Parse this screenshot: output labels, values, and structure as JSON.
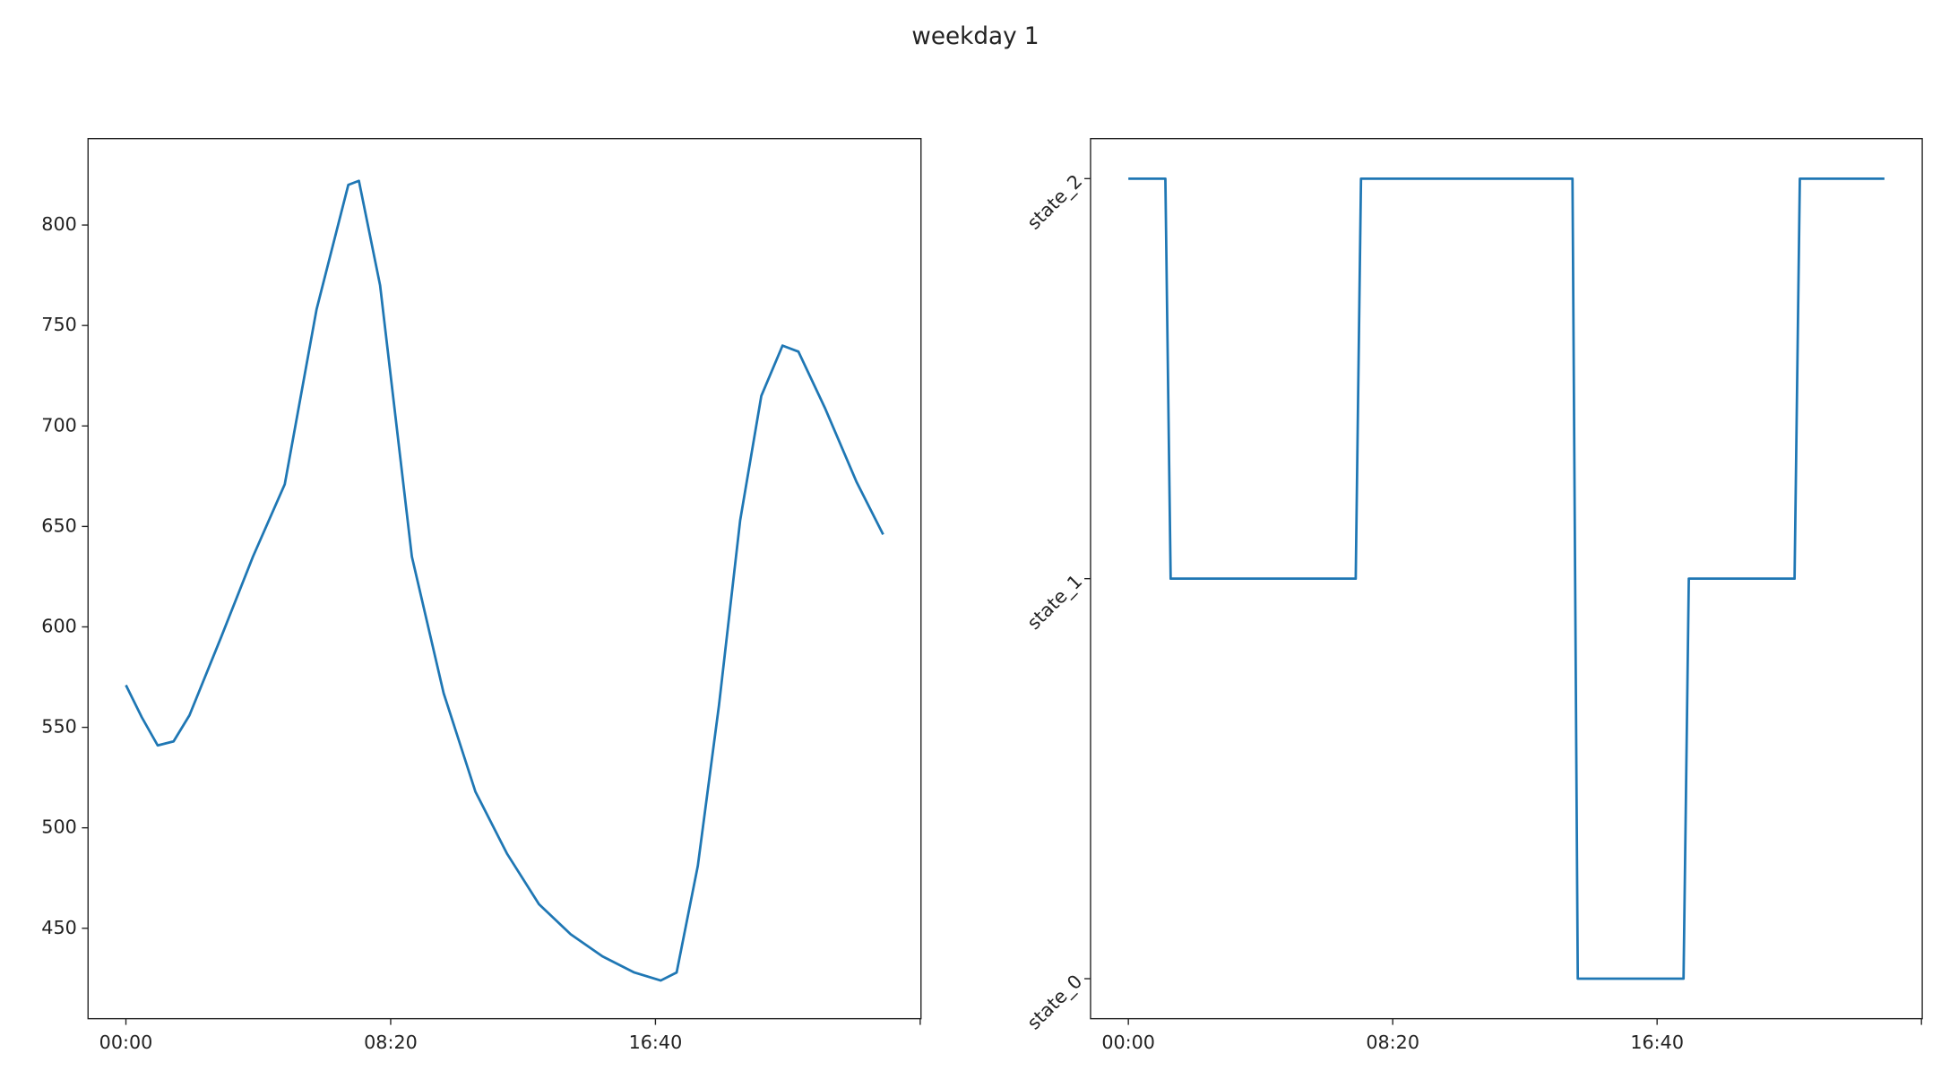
{
  "title": "weekday 1",
  "chart_data": [
    {
      "type": "line",
      "color": "#1f77b4",
      "x": [
        0,
        30,
        60,
        90,
        120,
        180,
        240,
        300,
        360,
        420,
        440,
        480,
        540,
        600,
        660,
        720,
        780,
        840,
        900,
        960,
        1010,
        1040,
        1080,
        1120,
        1160,
        1200,
        1240,
        1270,
        1320,
        1380,
        1430
      ],
      "values": [
        571,
        555,
        541,
        543,
        556,
        595,
        635,
        671,
        758,
        820,
        822,
        770,
        635,
        567,
        518,
        487,
        462,
        447,
        436,
        428,
        424,
        428,
        481,
        561,
        653,
        715,
        740,
        737,
        709,
        672,
        646
      ],
      "xlim": [
        -71.5,
        1501.5
      ],
      "xticks": [
        {
          "value": 0,
          "label": "00:00"
        },
        {
          "value": 500,
          "label": "08:20"
        },
        {
          "value": 1000,
          "label": "16:40"
        },
        {
          "value": 1500,
          "label": null
        }
      ],
      "ylim": [
        405,
        843
      ],
      "yticks": [
        450,
        500,
        550,
        600,
        650,
        700,
        750,
        800
      ]
    },
    {
      "type": "line",
      "color": "#1f77b4",
      "x": [
        0,
        70,
        80,
        430,
        440,
        840,
        850,
        1050,
        1060,
        1260,
        1270,
        1430
      ],
      "values": [
        2,
        2,
        1,
        1,
        2,
        2,
        0,
        0,
        1,
        1,
        2,
        2
      ],
      "xlim": [
        -71.5,
        1501.5
      ],
      "xticks": [
        {
          "value": 0,
          "label": "00:00"
        },
        {
          "value": 500,
          "label": "08:20"
        },
        {
          "value": 1000,
          "label": "16:40"
        },
        {
          "value": 1500,
          "label": null
        }
      ],
      "ylim": [
        -0.1,
        2.1
      ],
      "yticks": [
        {
          "value": 0,
          "label": "state_0"
        },
        {
          "value": 1,
          "label": "state_1"
        },
        {
          "value": 2,
          "label": "state_2"
        }
      ],
      "ytick_rotation": 45
    }
  ]
}
